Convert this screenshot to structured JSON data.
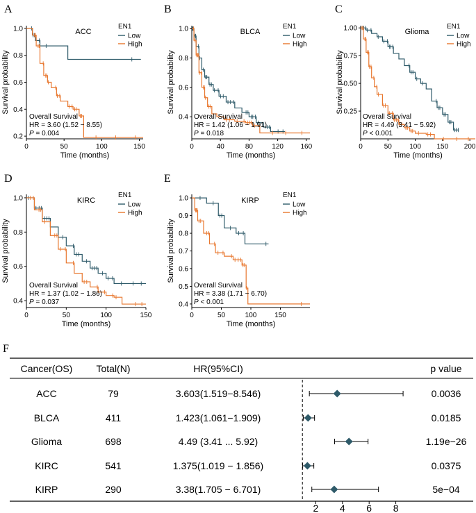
{
  "colors": {
    "low": "#2e5a69",
    "high": "#e8772e",
    "axis": "#000000",
    "diamond": "#2e5a69"
  },
  "x_axis_label": "Time (months)",
  "y_axis_label": "Survival probability",
  "legend_title": "EN1",
  "legend_low": "Low",
  "legend_high": "High",
  "overall_survival": "Overall Survival",
  "chart_data": [
    {
      "panel": "A",
      "type": "line",
      "title": "ACC",
      "xlim": [
        0,
        155
      ],
      "ylim": [
        0.18,
        1.02
      ],
      "xticks": [
        "0",
        "50",
        "100",
        "150"
      ],
      "yticks": [
        "0.2",
        "0.4",
        "0.6",
        "0.8",
        "1.0"
      ],
      "hr_text": "HR = 3.60 (1.52 − 8.55)",
      "p_label": "P",
      "p_text": " = 0.004",
      "series": [
        {
          "name": "Low",
          "steps": [
            [
              0,
              1.0
            ],
            [
              8,
              0.95
            ],
            [
              12,
              0.91
            ],
            [
              18,
              0.87
            ],
            [
              55,
              0.77
            ],
            [
              152,
              0.77
            ]
          ]
        },
        {
          "name": "High",
          "steps": [
            [
              0,
              1.0
            ],
            [
              8,
              0.95
            ],
            [
              13,
              0.87
            ],
            [
              18,
              0.74
            ],
            [
              23,
              0.65
            ],
            [
              28,
              0.6
            ],
            [
              33,
              0.56
            ],
            [
              40,
              0.5
            ],
            [
              45,
              0.46
            ],
            [
              55,
              0.42
            ],
            [
              62,
              0.4
            ],
            [
              70,
              0.35
            ],
            [
              76,
              0.19
            ],
            [
              155,
              0.19
            ]
          ]
        }
      ]
    },
    {
      "panel": "B",
      "type": "line",
      "title": "BLCA",
      "xlim": [
        0,
        165
      ],
      "ylim": [
        0.25,
        1.02
      ],
      "xticks": [
        "0",
        "40",
        "80",
        "120",
        "160"
      ],
      "yticks": [
        "0.4",
        "0.6",
        "0.8",
        "1.0"
      ],
      "hr_text": "HR = 1.42 (1.06 − 1.91)",
      "p_label": "P",
      "p_text": " = 0.018",
      "series": [
        {
          "name": "Low",
          "steps": [
            [
              0,
              1.0
            ],
            [
              3,
              0.95
            ],
            [
              6,
              0.88
            ],
            [
              10,
              0.8
            ],
            [
              14,
              0.72
            ],
            [
              18,
              0.67
            ],
            [
              24,
              0.62
            ],
            [
              30,
              0.58
            ],
            [
              38,
              0.54
            ],
            [
              48,
              0.5
            ],
            [
              60,
              0.46
            ],
            [
              70,
              0.43
            ],
            [
              80,
              0.4
            ],
            [
              90,
              0.36
            ],
            [
              100,
              0.33
            ],
            [
              110,
              0.3
            ],
            [
              130,
              0.3
            ]
          ]
        },
        {
          "name": "High",
          "steps": [
            [
              0,
              1.0
            ],
            [
              3,
              0.92
            ],
            [
              6,
              0.82
            ],
            [
              10,
              0.7
            ],
            [
              14,
              0.6
            ],
            [
              18,
              0.53
            ],
            [
              22,
              0.47
            ],
            [
              28,
              0.42
            ],
            [
              35,
              0.4
            ],
            [
              45,
              0.38
            ],
            [
              60,
              0.37
            ],
            [
              75,
              0.36
            ],
            [
              85,
              0.34
            ],
            [
              95,
              0.29
            ],
            [
              165,
              0.29
            ]
          ]
        }
      ]
    },
    {
      "panel": "C",
      "type": "line",
      "title": "Glioma",
      "xlim": [
        0,
        210
      ],
      "ylim": [
        0.0,
        1.02
      ],
      "xticks": [
        "0",
        "50",
        "100",
        "150",
        "200"
      ],
      "yticks": [
        "0.25",
        "0.50",
        "0.75",
        "1.00"
      ],
      "hr_text": "HR = 4.49 (3.41 − 5.92)",
      "p_label": "P",
      "p_text": " < 0.001",
      "series": [
        {
          "name": "Low",
          "steps": [
            [
              0,
              1.0
            ],
            [
              10,
              0.98
            ],
            [
              20,
              0.95
            ],
            [
              30,
              0.92
            ],
            [
              40,
              0.88
            ],
            [
              50,
              0.83
            ],
            [
              60,
              0.77
            ],
            [
              70,
              0.72
            ],
            [
              80,
              0.66
            ],
            [
              90,
              0.6
            ],
            [
              100,
              0.54
            ],
            [
              110,
              0.5
            ],
            [
              120,
              0.45
            ],
            [
              130,
              0.34
            ],
            [
              140,
              0.28
            ],
            [
              150,
              0.22
            ],
            [
              160,
              0.15
            ],
            [
              170,
              0.08
            ],
            [
              180,
              0.08
            ]
          ]
        },
        {
          "name": "High",
          "steps": [
            [
              0,
              1.0
            ],
            [
              5,
              0.9
            ],
            [
              10,
              0.78
            ],
            [
              15,
              0.65
            ],
            [
              20,
              0.55
            ],
            [
              25,
              0.47
            ],
            [
              30,
              0.4
            ],
            [
              40,
              0.3
            ],
            [
              50,
              0.23
            ],
            [
              60,
              0.17
            ],
            [
              70,
              0.13
            ],
            [
              80,
              0.1
            ],
            [
              90,
              0.07
            ],
            [
              100,
              0.05
            ],
            [
              120,
              0.04
            ],
            [
              135,
              0.0
            ],
            [
              210,
              0.0
            ]
          ]
        }
      ]
    },
    {
      "panel": "D",
      "type": "line",
      "title": "KIRC",
      "xlim": [
        0,
        150
      ],
      "ylim": [
        0.36,
        1.02
      ],
      "xticks": [
        "0",
        "50",
        "100",
        "150"
      ],
      "yticks": [
        "0.4",
        "0.6",
        "0.8",
        "1.0"
      ],
      "hr_text": "HR = 1.37 (1.02 − 1.86)",
      "p_label": "P",
      "p_text": " = 0.037",
      "series": [
        {
          "name": "Low",
          "steps": [
            [
              0,
              1.0
            ],
            [
              10,
              0.94
            ],
            [
              20,
              0.88
            ],
            [
              30,
              0.83
            ],
            [
              40,
              0.77
            ],
            [
              50,
              0.72
            ],
            [
              60,
              0.67
            ],
            [
              70,
              0.63
            ],
            [
              80,
              0.59
            ],
            [
              90,
              0.56
            ],
            [
              100,
              0.53
            ],
            [
              110,
              0.5
            ],
            [
              150,
              0.5
            ]
          ]
        },
        {
          "name": "High",
          "steps": [
            [
              0,
              1.0
            ],
            [
              10,
              0.93
            ],
            [
              20,
              0.86
            ],
            [
              30,
              0.78
            ],
            [
              40,
              0.7
            ],
            [
              50,
              0.62
            ],
            [
              60,
              0.56
            ],
            [
              70,
              0.51
            ],
            [
              80,
              0.48
            ],
            [
              90,
              0.45
            ],
            [
              100,
              0.43
            ],
            [
              110,
              0.42
            ],
            [
              120,
              0.38
            ],
            [
              150,
              0.38
            ]
          ]
        }
      ]
    },
    {
      "panel": "E",
      "type": "line",
      "title": "KIRP",
      "xlim": [
        0,
        200
      ],
      "ylim": [
        0.38,
        1.02
      ],
      "xticks": [
        "0",
        "50",
        "100",
        "150"
      ],
      "yticks": [
        "0.4",
        "0.5",
        "0.6",
        "0.7",
        "0.8",
        "0.9",
        "1.0"
      ],
      "hr_text": "HR = 3.38 (1.71 − 6.70)",
      "p_label": "P",
      "p_text": " < 0.001",
      "series": [
        {
          "name": "Low",
          "steps": [
            [
              0,
              1.0
            ],
            [
              25,
              0.97
            ],
            [
              45,
              0.9
            ],
            [
              55,
              0.83
            ],
            [
              75,
              0.8
            ],
            [
              90,
              0.74
            ],
            [
              130,
              0.74
            ]
          ]
        },
        {
          "name": "High",
          "steps": [
            [
              0,
              1.0
            ],
            [
              5,
              0.93
            ],
            [
              10,
              0.87
            ],
            [
              20,
              0.8
            ],
            [
              30,
              0.74
            ],
            [
              40,
              0.69
            ],
            [
              55,
              0.67
            ],
            [
              70,
              0.65
            ],
            [
              85,
              0.62
            ],
            [
              92,
              0.49
            ],
            [
              95,
              0.4
            ],
            [
              200,
              0.4
            ]
          ]
        }
      ]
    },
    {
      "panel": "F",
      "type": "table",
      "subtype": "forest",
      "headers": {
        "cancer": "Cancer(OS)",
        "total": "Total(N)",
        "hr": "HR(95%CI)",
        "p": "p value"
      },
      "x_range": [
        0,
        10
      ],
      "ref_line": 1,
      "xticks": [
        "2",
        "4",
        "6",
        "8"
      ],
      "rows": [
        {
          "cancer": "ACC",
          "n": "79",
          "hr": "3.603(1.519−8.546)",
          "p": "0.0036",
          "est": 3.603,
          "lo": 1.519,
          "hi": 8.546
        },
        {
          "cancer": "BLCA",
          "n": "411",
          "hr": "1.423(1.061−1.909)",
          "p": "0.0185",
          "est": 1.423,
          "lo": 1.061,
          "hi": 1.909
        },
        {
          "cancer": "Glioma",
          "n": "698",
          "hr": "4.49 (3.41 ... 5.92)",
          "p": "1.19e−26",
          "est": 4.49,
          "lo": 3.41,
          "hi": 5.92
        },
        {
          "cancer": "KIRC",
          "n": "541",
          "hr": "1.375(1.019 − 1.856)",
          "p": "0.0375",
          "est": 1.375,
          "lo": 1.019,
          "hi": 1.856
        },
        {
          "cancer": "KIRP",
          "n": "290",
          "hr": "3.38(1.705 − 6.701)",
          "p": "5e−04",
          "est": 3.38,
          "lo": 1.705,
          "hi": 6.701
        }
      ]
    }
  ]
}
